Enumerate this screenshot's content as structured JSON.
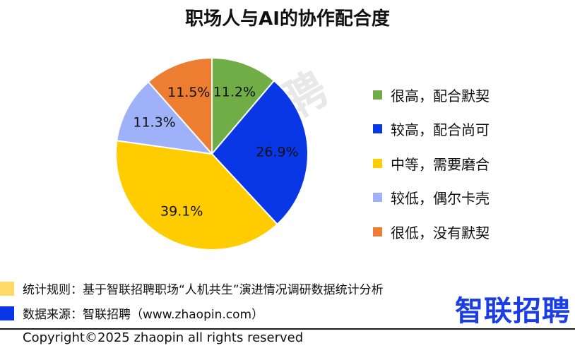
{
  "chart_data": {
    "type": "pie",
    "title": "职场人与AI的协作配合度",
    "slices": [
      {
        "name": "很高，配合默契",
        "value": 11.2,
        "label": "11.2%",
        "color": "#70ad47"
      },
      {
        "name": "较高，配合尚可",
        "value": 26.9,
        "label": "26.9%",
        "color": "#0a37e6"
      },
      {
        "name": "中等，需要磨合",
        "value": 39.1,
        "label": "39.1%",
        "color": "#ffcc00"
      },
      {
        "name": "较低，偶尔卡壳",
        "value": 11.3,
        "label": "11.3%",
        "color": "#9fb1f8"
      },
      {
        "name": "很低，没有默契",
        "value": 11.5,
        "label": "11.5%",
        "color": "#ed7d31"
      }
    ],
    "legend_position": "right"
  },
  "watermark": "智联招聘",
  "footer": {
    "rule_text": "统计规则：基于智联招聘职场“人机共生”演进情况调研数据统计分析",
    "rule_color": "#ffd966",
    "source_text": "数据来源：智联招聘（www.zhaopin.com）",
    "source_color": "#0a37e6",
    "copyright": "Copyright©2025 zhaopin all rights reserved",
    "logo": "智联招聘"
  }
}
